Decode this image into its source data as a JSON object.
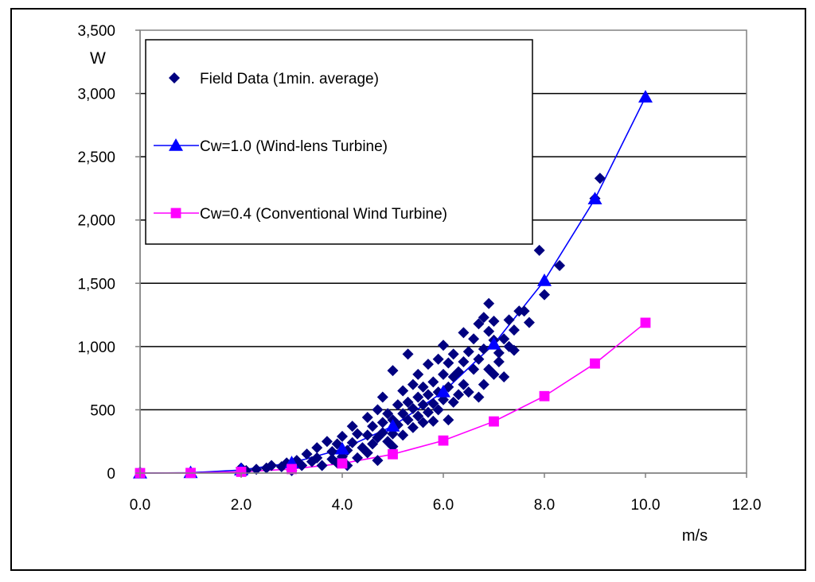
{
  "chart_data": {
    "type": "scatter",
    "title": "",
    "xlabel": "m/s",
    "ylabel": "W",
    "xlim": [
      0,
      12
    ],
    "ylim": [
      0,
      3500
    ],
    "x_ticks": [
      0,
      2,
      4,
      6,
      8,
      10,
      12
    ],
    "x_tick_labels": [
      "0.0",
      "2.0",
      "4.0",
      "6.0",
      "8.0",
      "10.0",
      "12.0"
    ],
    "y_ticks": [
      0,
      500,
      1000,
      1500,
      2000,
      2500,
      3000,
      3500
    ],
    "y_tick_labels": [
      "0",
      "500",
      "1,000",
      "1,500",
      "2,000",
      "2,500",
      "3,000",
      "3,500"
    ],
    "grid": "horizontal",
    "legend_position": "top-left",
    "series": [
      {
        "name": "Field Data (1min. average)",
        "kind": "scatter",
        "marker": "diamond",
        "color": "#000080",
        "points": [
          [
            2.0,
            40
          ],
          [
            2.1,
            20
          ],
          [
            2.3,
            30
          ],
          [
            2.5,
            40
          ],
          [
            2.6,
            60
          ],
          [
            2.8,
            50
          ],
          [
            2.9,
            80
          ],
          [
            3.0,
            20
          ],
          [
            3.0,
            50
          ],
          [
            3.1,
            100
          ],
          [
            3.2,
            60
          ],
          [
            3.3,
            150
          ],
          [
            3.4,
            90
          ],
          [
            3.5,
            200
          ],
          [
            3.5,
            120
          ],
          [
            3.6,
            60
          ],
          [
            3.7,
            250
          ],
          [
            3.8,
            170
          ],
          [
            3.8,
            110
          ],
          [
            3.9,
            80
          ],
          [
            3.9,
            230
          ],
          [
            4.0,
            130
          ],
          [
            4.0,
            290
          ],
          [
            4.1,
            180
          ],
          [
            4.1,
            60
          ],
          [
            4.2,
            370
          ],
          [
            4.2,
            240
          ],
          [
            4.3,
            310
          ],
          [
            4.3,
            120
          ],
          [
            4.4,
            200
          ],
          [
            4.5,
            440
          ],
          [
            4.5,
            300
          ],
          [
            4.5,
            160
          ],
          [
            4.6,
            370
          ],
          [
            4.6,
            230
          ],
          [
            4.7,
            500
          ],
          [
            4.7,
            280
          ],
          [
            4.7,
            100
          ],
          [
            4.8,
            600
          ],
          [
            4.8,
            400
          ],
          [
            4.8,
            320
          ],
          [
            4.9,
            250
          ],
          [
            4.9,
            470
          ],
          [
            5.0,
            810
          ],
          [
            5.0,
            420
          ],
          [
            5.0,
            310
          ],
          [
            5.0,
            210
          ],
          [
            5.1,
            540
          ],
          [
            5.1,
            380
          ],
          [
            5.2,
            650
          ],
          [
            5.2,
            470
          ],
          [
            5.2,
            300
          ],
          [
            5.3,
            940
          ],
          [
            5.3,
            560
          ],
          [
            5.3,
            420
          ],
          [
            5.4,
            700
          ],
          [
            5.4,
            510
          ],
          [
            5.4,
            360
          ],
          [
            5.5,
            600
          ],
          [
            5.5,
            450
          ],
          [
            5.5,
            780
          ],
          [
            5.6,
            540
          ],
          [
            5.6,
            680
          ],
          [
            5.6,
            400
          ],
          [
            5.7,
            860
          ],
          [
            5.7,
            620
          ],
          [
            5.7,
            480
          ],
          [
            5.8,
            720
          ],
          [
            5.8,
            550
          ],
          [
            5.8,
            410
          ],
          [
            5.9,
            900
          ],
          [
            5.9,
            640
          ],
          [
            5.9,
            500
          ],
          [
            6.0,
            1010
          ],
          [
            6.0,
            780
          ],
          [
            6.0,
            580
          ],
          [
            6.1,
            870
          ],
          [
            6.1,
            680
          ],
          [
            6.1,
            420
          ],
          [
            6.2,
            940
          ],
          [
            6.2,
            760
          ],
          [
            6.2,
            560
          ],
          [
            6.3,
            800
          ],
          [
            6.3,
            620
          ],
          [
            6.4,
            1110
          ],
          [
            6.4,
            880
          ],
          [
            6.4,
            700
          ],
          [
            6.5,
            960
          ],
          [
            6.5,
            640
          ],
          [
            6.6,
            1060
          ],
          [
            6.6,
            820
          ],
          [
            6.7,
            1180
          ],
          [
            6.7,
            900
          ],
          [
            6.7,
            600
          ],
          [
            6.8,
            1230
          ],
          [
            6.8,
            980
          ],
          [
            6.8,
            700
          ],
          [
            6.9,
            1340
          ],
          [
            6.9,
            1120
          ],
          [
            6.9,
            820
          ],
          [
            7.0,
            1200
          ],
          [
            7.0,
            1050
          ],
          [
            7.0,
            780
          ],
          [
            7.1,
            950
          ],
          [
            7.1,
            880
          ],
          [
            7.2,
            1060
          ],
          [
            7.2,
            760
          ],
          [
            7.3,
            1210
          ],
          [
            7.3,
            1000
          ],
          [
            7.4,
            970
          ],
          [
            7.4,
            1130
          ],
          [
            7.5,
            1280
          ],
          [
            7.6,
            1280
          ],
          [
            7.7,
            1190
          ],
          [
            7.9,
            1760
          ],
          [
            8.0,
            1410
          ],
          [
            8.3,
            1640
          ],
          [
            9.0,
            2170
          ],
          [
            9.1,
            2330
          ]
        ]
      },
      {
        "name": "Cw=1.0 (Wind-lens Turbine)",
        "kind": "line",
        "marker": "triangle",
        "color": "#0000ff",
        "points": [
          [
            0,
            0
          ],
          [
            1,
            3
          ],
          [
            2,
            24
          ],
          [
            3,
            81
          ],
          [
            4,
            190
          ],
          [
            5,
            371
          ],
          [
            6,
            642
          ],
          [
            7,
            1019
          ],
          [
            8,
            1521
          ],
          [
            9,
            2166
          ],
          [
            10,
            2971
          ]
        ]
      },
      {
        "name": "Cw=0.4 (Conventional Wind Turbine)",
        "kind": "line",
        "marker": "square",
        "color": "#ff00ff",
        "points": [
          [
            0,
            0
          ],
          [
            1,
            1
          ],
          [
            2,
            10
          ],
          [
            3,
            32
          ],
          [
            4,
            76
          ],
          [
            5,
            149
          ],
          [
            6,
            257
          ],
          [
            7,
            408
          ],
          [
            8,
            608
          ],
          [
            9,
            866
          ],
          [
            10,
            1188
          ]
        ]
      }
    ]
  }
}
